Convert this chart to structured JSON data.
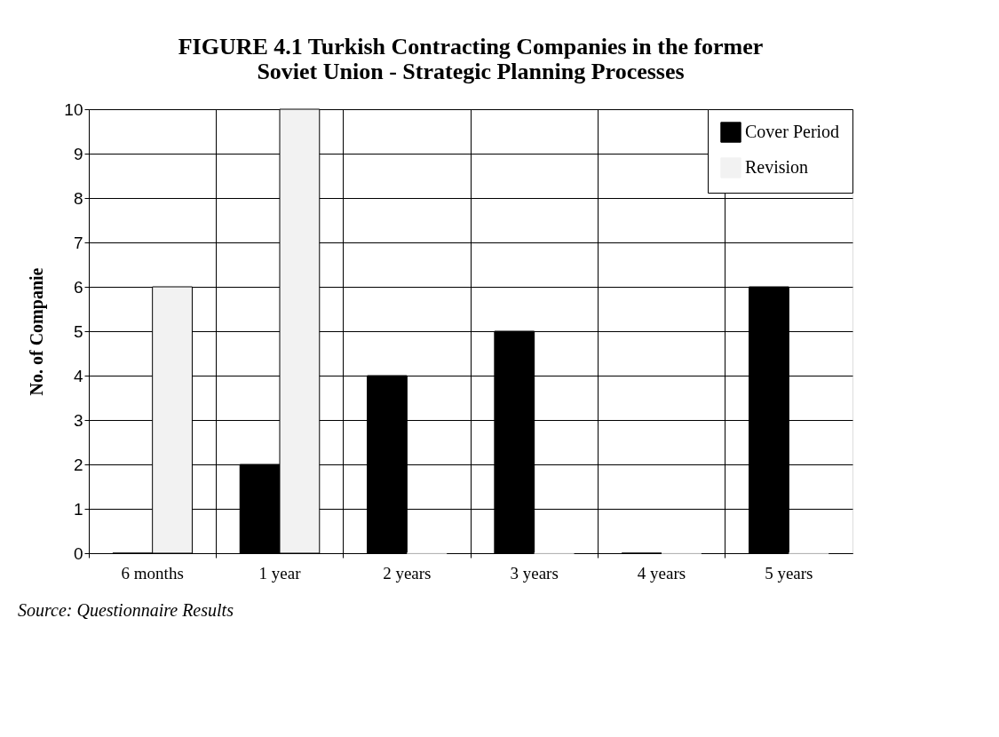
{
  "chart_data": {
    "type": "bar",
    "title": [
      "FIGURE 4.1 Turkish Contracting Companies in the former",
      "Soviet Union - Strategic Planning Processes"
    ],
    "ylabel": "No. of Companie",
    "categories": [
      "6 months",
      "1 year",
      "2 years",
      "3 years",
      "4 years",
      "5 years"
    ],
    "series": [
      {
        "name": "Cover Period",
        "color": "#000000",
        "values": [
          0,
          2,
          4,
          5,
          0,
          6
        ]
      },
      {
        "name": "Revision",
        "color": "#f2f2f2",
        "values": [
          6,
          10,
          0,
          0,
          0,
          0
        ]
      }
    ],
    "ylim": [
      0,
      10
    ],
    "yticks": [
      0,
      1,
      2,
      3,
      4,
      5,
      6,
      7,
      8,
      9,
      10
    ],
    "grid": true,
    "legend": "top right",
    "annotations": [
      "Source: Questionnaire Results"
    ]
  }
}
